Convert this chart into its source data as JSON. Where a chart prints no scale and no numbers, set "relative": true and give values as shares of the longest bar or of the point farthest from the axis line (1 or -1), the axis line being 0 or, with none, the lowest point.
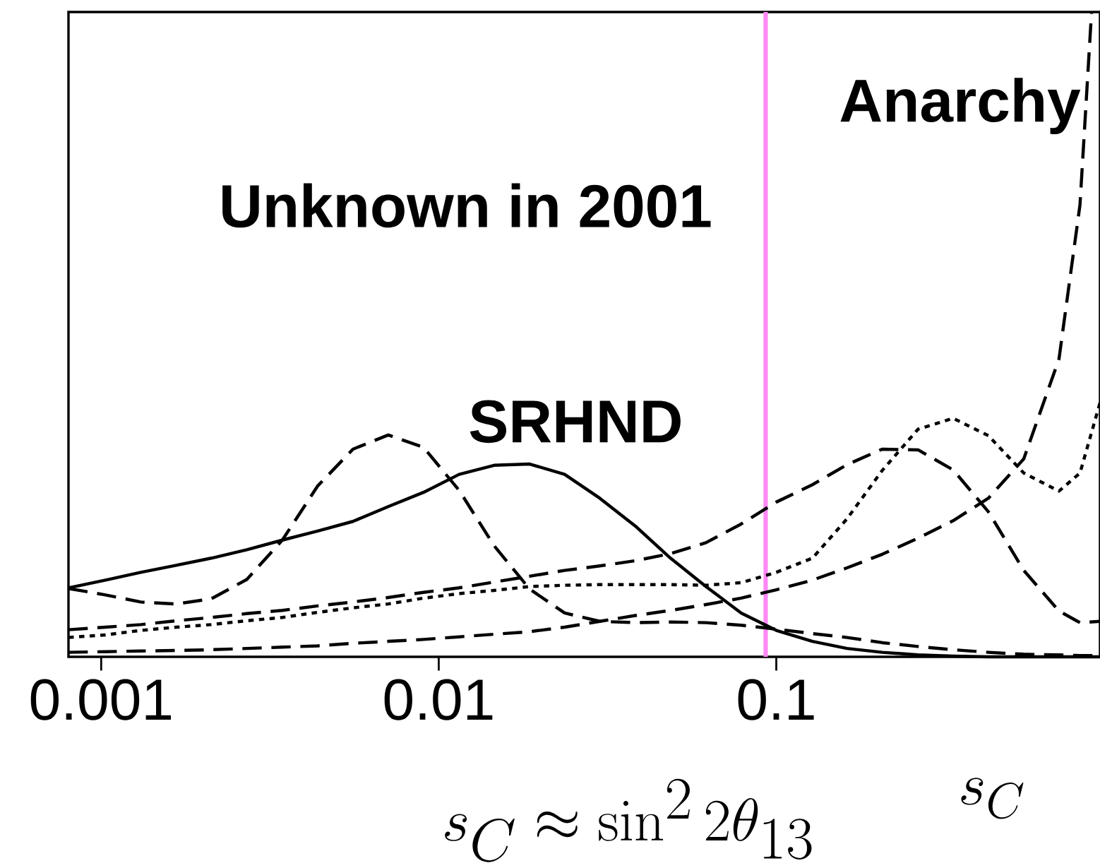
{
  "chart_data": {
    "type": "line",
    "relative": true,
    "xlabel": "s_C \\approx \\sin^2 2\\theta_{13}",
    "annotations": [
      "Unknown in 2001",
      "s_C"
    ],
    "log": "x",
    "xlim": [
      0.0008,
      0.91
    ],
    "xticks": [
      0.001,
      0.01,
      0.1
    ],
    "x": [
      0.0008,
      0.00103,
      0.00131,
      0.00167,
      0.00212,
      0.0027,
      0.00344,
      0.00438,
      0.00557,
      0.00709,
      0.00901,
      0.0115,
      0.0146,
      0.0186,
      0.0236,
      0.03,
      0.0382,
      0.0486,
      0.0619,
      0.0787,
      0.1,
      0.128,
      0.162,
      0.206,
      0.263,
      0.334,
      0.425,
      0.541,
      0.688,
      0.794,
      0.91
    ],
    "ref_lines": [
      {
        "axis": "x",
        "value": 0.093,
        "color": "#ff88f5"
      }
    ],
    "series": [
      {
        "name": "SRHND",
        "color": "#000000",
        "line_style": "solid",
        "values": [
          0.107,
          0.119,
          0.131,
          0.142,
          0.153,
          0.166,
          0.181,
          0.195,
          0.21,
          0.233,
          0.255,
          0.283,
          0.297,
          0.299,
          0.283,
          0.246,
          0.203,
          0.153,
          0.109,
          0.068,
          0.041,
          0.024,
          0.013,
          0.007,
          0.003,
          0.001,
          0.0,
          0.0,
          0.0,
          0.0,
          0.0
        ]
      },
      {
        "color": "#000000",
        "line_style": "dashed",
        "values": [
          0.106,
          0.096,
          0.085,
          0.082,
          0.09,
          0.12,
          0.181,
          0.265,
          0.322,
          0.344,
          0.325,
          0.258,
          0.172,
          0.105,
          0.068,
          0.055,
          0.053,
          0.054,
          0.053,
          0.049,
          0.043,
          0.036,
          0.03,
          0.022,
          0.016,
          0.011,
          0.007,
          0.004,
          0.003,
          0.002,
          0.002
        ]
      },
      {
        "color": "#000000",
        "line_style": "dashed",
        "values": [
          0.042,
          0.046,
          0.05,
          0.056,
          0.061,
          0.067,
          0.072,
          0.079,
          0.085,
          0.092,
          0.1,
          0.107,
          0.116,
          0.125,
          0.134,
          0.141,
          0.149,
          0.16,
          0.177,
          0.206,
          0.24,
          0.267,
          0.298,
          0.322,
          0.321,
          0.29,
          0.225,
          0.134,
          0.071,
          0.053,
          0.055
        ]
      },
      {
        "color": "#000000",
        "line_style": "dotted",
        "values": [
          0.03,
          0.034,
          0.041,
          0.046,
          0.05,
          0.056,
          0.061,
          0.069,
          0.076,
          0.082,
          0.091,
          0.098,
          0.103,
          0.109,
          0.111,
          0.112,
          0.112,
          0.112,
          0.111,
          0.115,
          0.131,
          0.153,
          0.214,
          0.289,
          0.353,
          0.37,
          0.343,
          0.285,
          0.257,
          0.285,
          0.394
        ]
      },
      {
        "name": "Anarchy",
        "color": "#000000",
        "line_style": "dashed",
        "x": [
          0.0008,
          0.00103,
          0.00131,
          0.00167,
          0.00212,
          0.0027,
          0.00344,
          0.00438,
          0.00557,
          0.00709,
          0.00901,
          0.0115,
          0.0146,
          0.0186,
          0.0236,
          0.03,
          0.0382,
          0.0486,
          0.0619,
          0.0787,
          0.1,
          0.128,
          0.162,
          0.206,
          0.263,
          0.334,
          0.425,
          0.541,
          0.688,
          0.794,
          0.859
        ],
        "values": [
          0.007,
          0.008,
          0.009,
          0.01,
          0.011,
          0.013,
          0.015,
          0.017,
          0.021,
          0.024,
          0.027,
          0.031,
          0.035,
          0.039,
          0.046,
          0.055,
          0.064,
          0.072,
          0.081,
          0.091,
          0.104,
          0.119,
          0.138,
          0.159,
          0.184,
          0.211,
          0.246,
          0.307,
          0.462,
          0.701,
          1.0
        ]
      }
    ]
  }
}
